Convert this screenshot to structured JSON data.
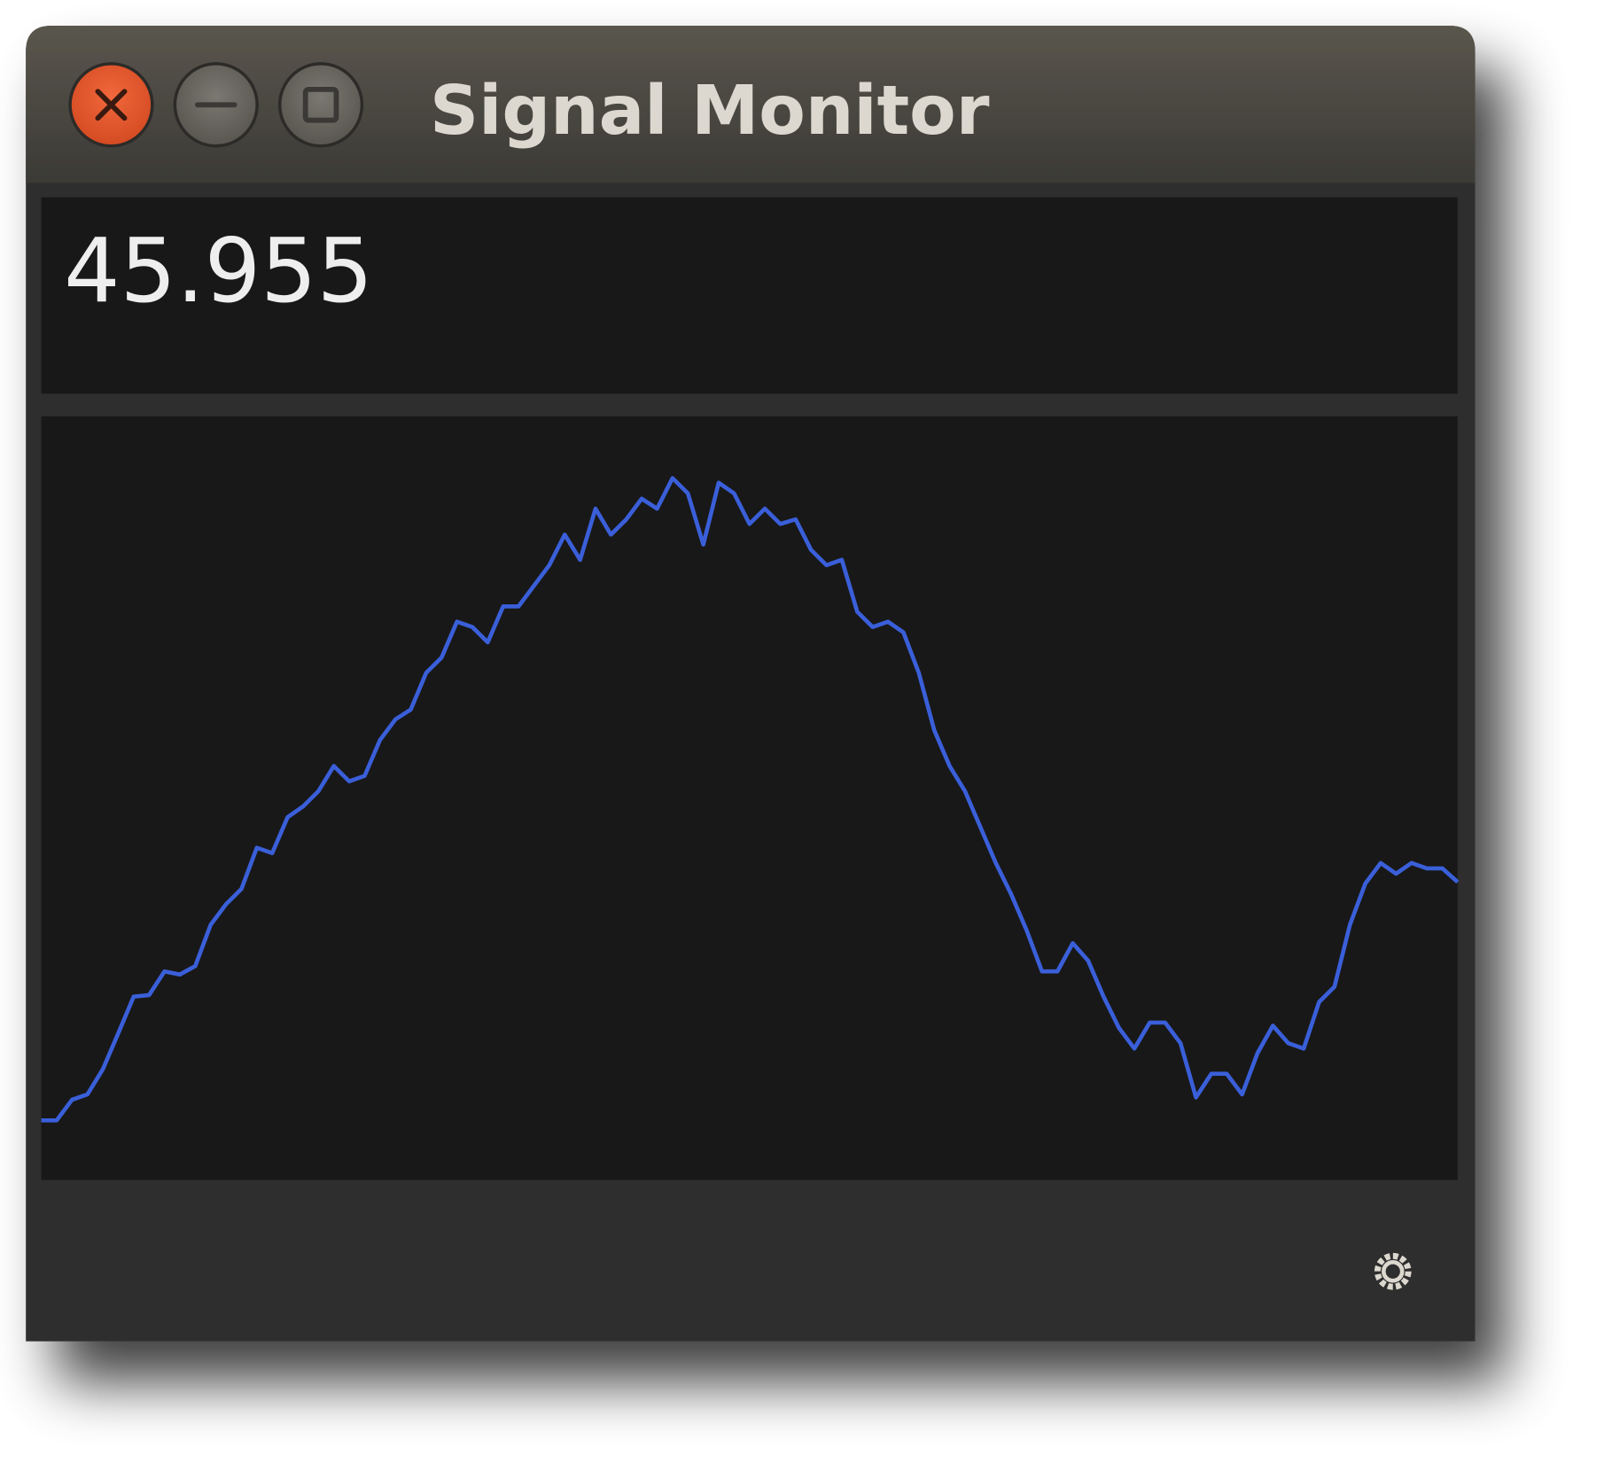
{
  "window": {
    "title": "Signal Monitor"
  },
  "readout": {
    "value": 45.955
  },
  "chart_data": {
    "type": "line",
    "color": "#3a5fd9",
    "ylim": [
      0,
      100
    ],
    "values": [
      7.8,
      7.8,
      10.5,
      11.2,
      14.5,
      19.2,
      24.0,
      24.2,
      27.3,
      26.9,
      28.0,
      33.4,
      36.1,
      38.1,
      43.5,
      42.8,
      47.5,
      48.9,
      50.9,
      54.2,
      52.2,
      52.9,
      57.6,
      60.3,
      61.6,
      66.4,
      68.4,
      73.1,
      72.4,
      70.4,
      75.1,
      75.1,
      77.8,
      80.5,
      84.5,
      81.2,
      87.9,
      84.5,
      86.5,
      89.2,
      87.9,
      91.9,
      89.9,
      83.2,
      91.3,
      89.9,
      85.9,
      87.9,
      85.9,
      86.5,
      82.5,
      80.5,
      81.2,
      74.4,
      72.4,
      73.1,
      71.7,
      66.4,
      58.9,
      54.2,
      50.9,
      46.2,
      41.5,
      37.4,
      32.7,
      27.3,
      27.3,
      31.0,
      28.7,
      24.0,
      19.9,
      17.2,
      20.6,
      20.6,
      17.9,
      10.8,
      13.9,
      13.9,
      11.2,
      16.6,
      20.2,
      17.9,
      17.2,
      23.3,
      25.3,
      33.4,
      38.8,
      41.5,
      40.1,
      41.5,
      40.8,
      40.8,
      39.0
    ]
  }
}
